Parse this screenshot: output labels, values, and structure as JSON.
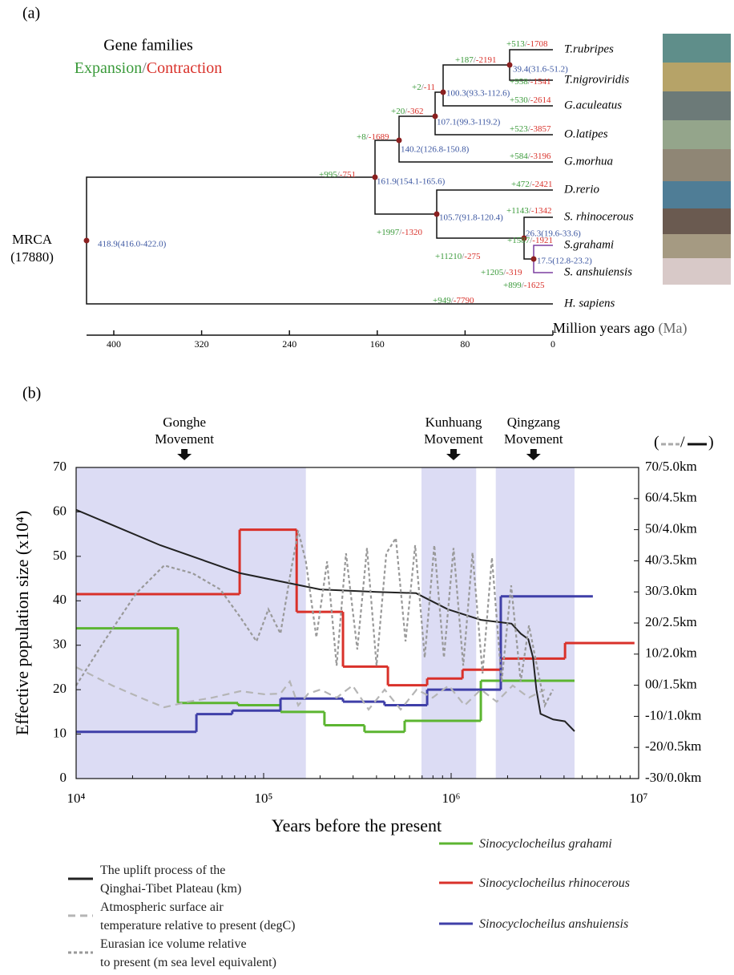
{
  "panel_a": {
    "label": "(a)",
    "title": "Gene families",
    "expansion": "Expansion",
    "separator": "/",
    "contraction": "Contraction",
    "root_label": "MRCA",
    "root_count": "(17880)",
    "species": [
      "T.rubripes",
      "T.nigroviridis",
      "G.aculeatus",
      "O.latipes",
      "G.morhua",
      "D.rerio",
      "S. rhinocerous",
      "S.grahami",
      "S. anshuiensis",
      "H. sapiens"
    ],
    "nodes": [
      "418.9(416.0-422.0)",
      "161.9(154.1-165.6)",
      "140.2(126.8-150.8)",
      "107.1(99.3-119.2)",
      "100.3(93.3-112.6)",
      "39.4(31.6-51.2)",
      "105.7(91.8-120.4)",
      "26.3(19.6-33.6)",
      "17.5(12.8-23.2)"
    ],
    "branches": [
      {
        "gain": "+995",
        "loss": "-751"
      },
      {
        "gain": "+949",
        "loss": "-7790"
      },
      {
        "gain": "+8",
        "loss": "-1689"
      },
      {
        "gain": "+20",
        "loss": "-362"
      },
      {
        "gain": "+2",
        "loss": "-11"
      },
      {
        "gain": "+187",
        "loss": "-2191"
      },
      {
        "gain": "+513",
        "loss": "-1708"
      },
      {
        "gain": "+958",
        "loss": "-1541"
      },
      {
        "gain": "+530",
        "loss": "-2614"
      },
      {
        "gain": "+523",
        "loss": "-3857"
      },
      {
        "gain": "+584",
        "loss": "-3196"
      },
      {
        "gain": "+472",
        "loss": "-2421"
      },
      {
        "gain": "+1997",
        "loss": "-1320"
      },
      {
        "gain": "+1143",
        "loss": "-1342"
      },
      {
        "gain": "+11210",
        "loss": "-275"
      },
      {
        "gain": "+1587",
        "loss": "-1921"
      },
      {
        "gain": "+1205",
        "loss": "-319"
      },
      {
        "gain": "+899",
        "loss": "-1625"
      }
    ],
    "axis": {
      "ticks": [
        400,
        320,
        240,
        160,
        80,
        0
      ],
      "label": "Million years ago",
      "unit": "(Ma)"
    }
  },
  "chart_data": {
    "type": "line",
    "label": "(b)",
    "x_label": "Years before the present",
    "y_label": "Effective population size (x10⁴)",
    "y2_label": [
      "(",
      "/",
      ")"
    ],
    "log_x": true,
    "xlim": [
      10000,
      10000000
    ],
    "xticks": [
      {
        "value": 10000,
        "label": "10⁴"
      },
      {
        "value": 100000,
        "label": "10⁵"
      },
      {
        "value": 1000000,
        "label": "10⁶"
      },
      {
        "value": 10000000,
        "label": "10⁷"
      }
    ],
    "ylim": [
      0,
      70
    ],
    "yticks": [
      0,
      10,
      20,
      30,
      40,
      50,
      60,
      70
    ],
    "y2lim": [
      -30,
      70
    ],
    "y2ticks": [
      {
        "value": -30,
        "label": "-30/0.0km"
      },
      {
        "value": -20,
        "label": "-20/0.5km"
      },
      {
        "value": -10,
        "label": "-10/1.0km"
      },
      {
        "value": 0,
        "label": "00/1.5km"
      },
      {
        "value": 10,
        "label": "10/2.0km"
      },
      {
        "value": 20,
        "label": "20/2.5km"
      },
      {
        "value": 30,
        "label": "30/3.0km"
      },
      {
        "value": 40,
        "label": "40/3.5km"
      },
      {
        "value": 50,
        "label": "50/4.0km"
      },
      {
        "value": 60,
        "label": "60/4.5km"
      },
      {
        "value": 70,
        "label": "70/5.0km"
      }
    ],
    "y3lim": [
      0,
      5
    ],
    "bands": [
      [
        10000,
        168000
      ],
      [
        695000,
        1360000
      ],
      [
        1730000,
        4550000
      ]
    ],
    "band_color": "#dcdcf4",
    "annotations": [
      {
        "lines": [
          "Gonghe",
          "Movement"
        ],
        "x": 37800
      },
      {
        "lines": [
          "Kunhuang",
          "Movement"
        ],
        "x": 1030000
      },
      {
        "lines": [
          "Qingzang",
          "Movement"
        ],
        "x": 2750000
      }
    ],
    "series": [
      {
        "name": "Sinocyclocheilus grahami",
        "color": "#5cb531",
        "step": true,
        "x": [
          10000,
          34900,
          73000,
          123000,
          211000,
          345000,
          565000,
          1440000
        ],
        "x_end": 4550000,
        "values": [
          33.8,
          17,
          16.5,
          15,
          12,
          10.5,
          13,
          22
        ]
      },
      {
        "name": "Sinocyclocheilus rhinocerous",
        "color": "#d9312a",
        "step": true,
        "x": [
          10000,
          74500,
          150000,
          265000,
          460000,
          745000,
          1150000,
          1840000,
          4050000
        ],
        "x_end": 9500000,
        "values": [
          41.5,
          56,
          37.5,
          25.2,
          21,
          22.5,
          24.5,
          27,
          30.5
        ]
      },
      {
        "name": "Sinocyclocheilus anshuiensis",
        "color": "#3f3fa8",
        "step": true,
        "x": [
          10000,
          43800,
          68000,
          123000,
          265000,
          441000,
          745000,
          1840000
        ],
        "x_end": 5700000,
        "values": [
          10.5,
          14.5,
          15.3,
          18,
          17.3,
          16.5,
          20,
          41
        ]
      },
      {
        "name": "The uplift process of the\nQinghai-Tibet Plateau (km)",
        "color": "#222222",
        "axis": "y3",
        "dash": "solid",
        "x": [
          10000,
          28100,
          75000,
          200000,
          400000,
          650000,
          960000,
          1440000,
          2100000,
          2350000,
          2580000,
          2730000,
          2850000,
          3000000,
          3500000,
          4040000,
          4550000
        ],
        "values": [
          4.32,
          3.75,
          3.3,
          3.04,
          3.0,
          2.98,
          2.72,
          2.55,
          2.49,
          2.33,
          2.24,
          1.95,
          1.43,
          1.04,
          0.95,
          0.92,
          0.76
        ]
      },
      {
        "name": "Atmospheric surface air\ntemperature relative to present (degC)",
        "color": "#b5b5b5",
        "axis": "y2",
        "dash": "dashed",
        "x": [
          10000,
          15600,
          23100,
          29500,
          39600,
          53300,
          75200,
          101000,
          123000,
          138000,
          153000,
          173000,
          201000,
          245000,
          298000,
          363000,
          442000,
          538000,
          655000,
          797000,
          971000,
          1180000,
          1440000,
          1750000,
          2130000,
          2600000,
          3160000
        ],
        "values": [
          5.8,
          -0.1,
          -4.5,
          -7.1,
          -5.3,
          -4,
          -1.9,
          -2.9,
          -2.7,
          1.2,
          -6.5,
          -2.7,
          -1.4,
          -4,
          -0.1,
          -7.8,
          -1.4,
          -7.8,
          -1.4,
          -4,
          -0.1,
          -6.5,
          -1.4,
          -5.3,
          -0.1,
          -4,
          -1.4
        ]
      },
      {
        "name": "Eurasian ice volume relative\nto present (m sea level equivalent)",
        "color": "#999999",
        "axis": "y2",
        "dash": "dotted",
        "x": [
          10000,
          14100,
          20900,
          29500,
          41700,
          58700,
          75200,
          91600,
          106000,
          123000,
          138000,
          153000,
          168000,
          191000,
          218000,
          245000,
          275000,
          316000,
          356000,
          400000,
          451000,
          507000,
          571000,
          643000,
          723000,
          813000,
          915000,
          1030000,
          1160000,
          1300000,
          1470000,
          1650000,
          1860000,
          2090000,
          2350000,
          2600000,
          2920000,
          3160000,
          3490000
        ],
        "values": [
          -0.1,
          14.1,
          29.5,
          38.5,
          36,
          30.8,
          21.8,
          14.1,
          24.4,
          16.6,
          34.7,
          49.7,
          39.8,
          15.4,
          39.8,
          6.3,
          42.4,
          11.5,
          44.1,
          6.3,
          42.4,
          47.3,
          14.1,
          45,
          8.9,
          45,
          8.9,
          44.1,
          6.3,
          42.6,
          3.8,
          41,
          1.2,
          32.1,
          1.2,
          19.2,
          3.8,
          -6.5,
          -1.4
        ]
      }
    ]
  }
}
